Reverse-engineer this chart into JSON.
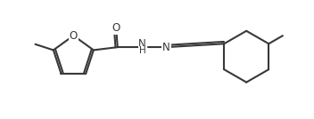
{
  "background": "#ffffff",
  "line_color": "#383838",
  "line_width": 1.5,
  "font_size": 8.5,
  "figsize": [
    3.52,
    1.34
  ],
  "dpi": 100,
  "xlim": [
    -0.5,
    10.0
  ],
  "ylim": [
    0.2,
    4.0
  ]
}
